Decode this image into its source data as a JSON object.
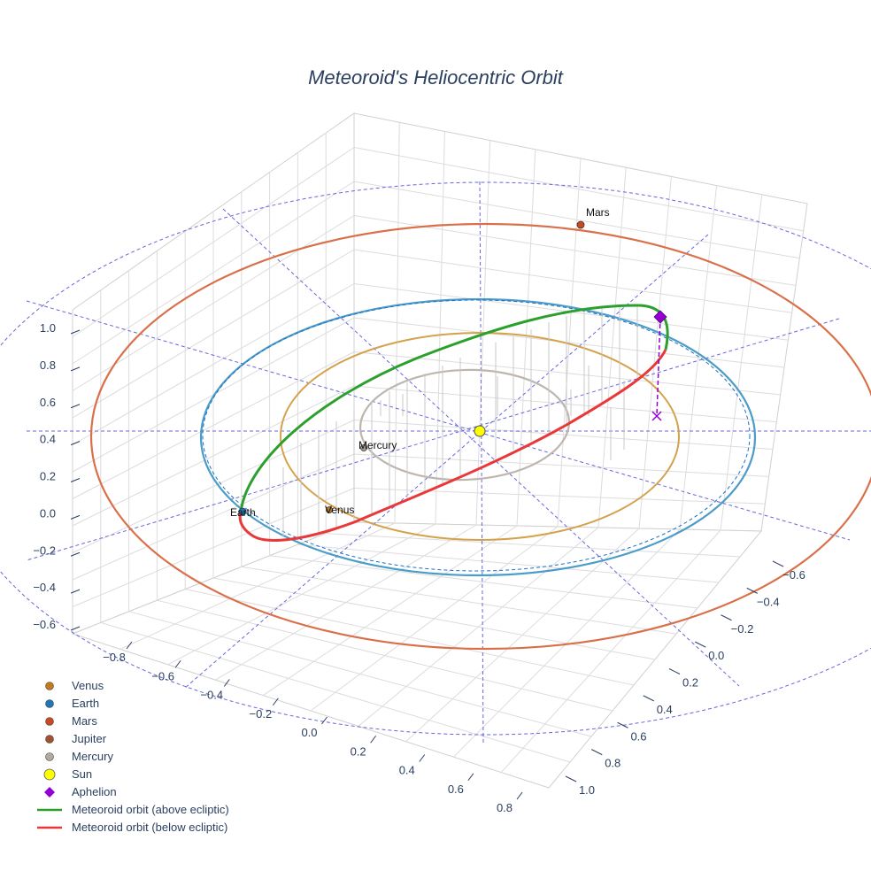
{
  "chart_data": {
    "type": "scatter3d",
    "title": "Meteoroid's Heliocentric Orbit",
    "axes": {
      "x_ticks": [
        -0.8,
        -0.6,
        -0.4,
        -0.2,
        0.0,
        0.2,
        0.4,
        0.6,
        0.8
      ],
      "y_ticks": [
        -0.6,
        -0.4,
        -0.2,
        0.0,
        0.2,
        0.4,
        0.6,
        0.8,
        1.0
      ],
      "z_ticks": [
        -0.6,
        -0.4,
        -0.2,
        0.0,
        0.2,
        0.4,
        0.6,
        0.8,
        1.0
      ],
      "x_tick_labels": [
        "−0.8",
        "−0.6",
        "−0.4",
        "−0.2",
        "0.0",
        "0.2",
        "0.4",
        "0.6",
        "0.8"
      ],
      "y_tick_labels": [
        "−0.6",
        "−0.4",
        "−0.2",
        "0.0",
        "0.2",
        "0.4",
        "0.6",
        "0.8",
        "1.0"
      ],
      "z_tick_labels": [
        "−0.6",
        "−0.4",
        "−0.2",
        "0.0",
        "0.2",
        "0.4",
        "0.6",
        "0.8",
        "1.0"
      ],
      "grid": true,
      "ecliptic_reference_grid": true
    },
    "bodies": [
      {
        "name": "Mercury",
        "orbit_radius_au": 0.387,
        "color": "#b0a8a0",
        "label": "Mercury",
        "marker_color": "#a59a8e"
      },
      {
        "name": "Venus",
        "orbit_radius_au": 0.723,
        "color": "#d4a24c",
        "label": "Venus",
        "marker_color": "#c17a1c"
      },
      {
        "name": "Earth",
        "orbit_radius_au": 1.0,
        "color": "#4c9cc8",
        "label": "Earth",
        "marker_color": "#1f77b4"
      },
      {
        "name": "Mars",
        "orbit_radius_au": 1.524,
        "color": "#d9704a",
        "label": "Mars",
        "marker_color": "#c84a20"
      },
      {
        "name": "Jupiter",
        "color": "#a0522d",
        "marker_color": "#a0522d"
      },
      {
        "name": "Sun",
        "marker_color": "#ffff00"
      }
    ],
    "meteoroid": {
      "perihelion_au": 1.0,
      "aphelion_au": 1.45,
      "above_color": "#2ca02c",
      "below_color": "#e8383a"
    },
    "aphelion": {
      "color": "#9400d3"
    },
    "legend": {
      "placement": "bottom-left",
      "items": [
        {
          "label": "Venus",
          "kind": "dot",
          "color": "#c17a1c"
        },
        {
          "label": "Earth",
          "kind": "dot",
          "color": "#1f77b4"
        },
        {
          "label": "Mars",
          "kind": "dot",
          "color": "#c84a20"
        },
        {
          "label": "Jupiter",
          "kind": "dot",
          "color": "#a0522d"
        },
        {
          "label": "Mercury",
          "kind": "dot",
          "color": "#b3a89c"
        },
        {
          "label": "Sun",
          "kind": "sun",
          "color": "#ffff00"
        },
        {
          "label": "Aphelion",
          "kind": "diamond",
          "color": "#9400d3"
        },
        {
          "label": "Meteoroid orbit (above ecliptic)",
          "kind": "line",
          "color": "#2ca02c"
        },
        {
          "label": "Meteoroid orbit (below ecliptic)",
          "kind": "line",
          "color": "#e8383a"
        }
      ]
    }
  }
}
